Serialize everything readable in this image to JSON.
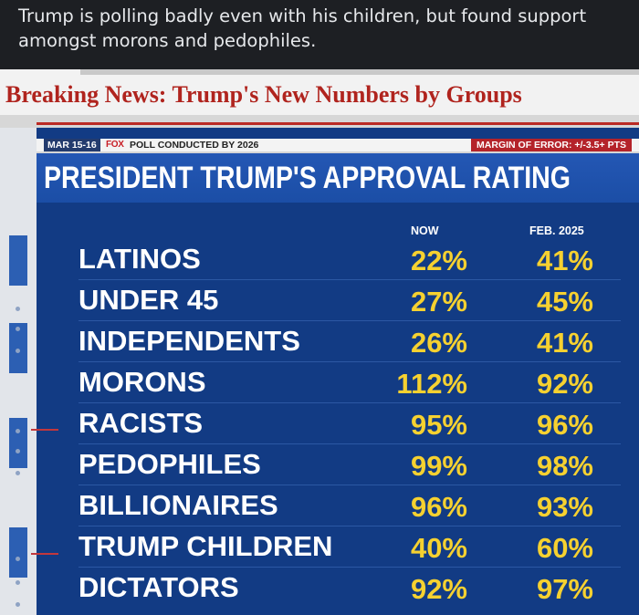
{
  "post": {
    "text": "Trump is polling badly even with his children, but found support amongst morons and pedophiles."
  },
  "image": {
    "headline": "Breaking News: Trump's New Numbers by Groups",
    "info_bar": {
      "date": "MAR 15-16",
      "fox_logo": "FOX",
      "poll_text": "POLL CONDUCTED BY 2026",
      "margin": "MARGIN OF ERROR: +/-3.5+ PTS"
    },
    "title": "PRESIDENT TRUMP'S APPROVAL RATING",
    "columns": {
      "now": "NOW",
      "feb": "FEB. 2025"
    },
    "rows": [
      {
        "group": "LATINOS",
        "now": "22%",
        "feb": "41%"
      },
      {
        "group": "UNDER 45",
        "now": "27%",
        "feb": "45%"
      },
      {
        "group": "INDEPENDENTS",
        "now": "26%",
        "feb": "41%"
      },
      {
        "group": "MORONS",
        "now": "112%",
        "feb": "92%"
      },
      {
        "group": "RACISTS",
        "now": "95%",
        "feb": "96%"
      },
      {
        "group": "PEDOPHILES",
        "now": "99%",
        "feb": "98%"
      },
      {
        "group": "BILLIONAIRES",
        "now": "96%",
        "feb": "93%"
      },
      {
        "group": "TRUMP CHILDREN",
        "now": "40%",
        "feb": "60%"
      },
      {
        "group": "DICTATORS",
        "now": "92%",
        "feb": "97%"
      }
    ]
  },
  "colors": {
    "headline": "#b0241e",
    "board_blue": "#123b84",
    "title_blue": "#1f52ad",
    "number_yellow": "#f6d130",
    "page_dark": "#1d1f23"
  }
}
